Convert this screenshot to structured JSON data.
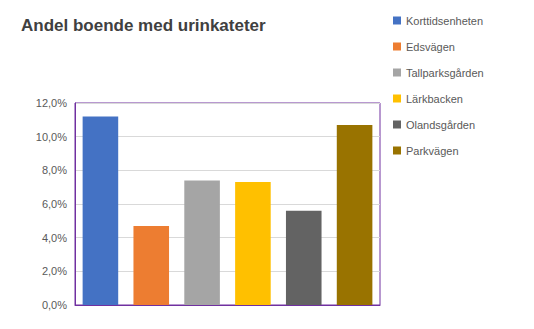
{
  "chart_data": {
    "type": "bar",
    "title": "Andel boende med urinkateter",
    "categories": [
      "Korttidsenheten",
      "Edsvägen",
      "Tallparksgården",
      "Lärkbacken",
      "Olandsgården",
      "Parkvägen"
    ],
    "values": [
      11.2,
      4.7,
      7.4,
      7.3,
      5.6,
      10.7
    ],
    "colors": [
      "#4472c4",
      "#ed7d31",
      "#a5a5a5",
      "#ffc000",
      "#636363",
      "#997300"
    ],
    "ylim": [
      0,
      12
    ],
    "yticks": [
      {
        "value": 0,
        "label": "0,0%"
      },
      {
        "value": 2,
        "label": "2,0%"
      },
      {
        "value": 4,
        "label": "4,0%"
      },
      {
        "value": 6,
        "label": "6,0%"
      },
      {
        "value": 8,
        "label": "8,0%"
      },
      {
        "value": 10,
        "label": "10,0%"
      },
      {
        "value": 12,
        "label": "12,0%"
      }
    ],
    "grid": true,
    "legend": "right",
    "tick_labels": "y"
  }
}
